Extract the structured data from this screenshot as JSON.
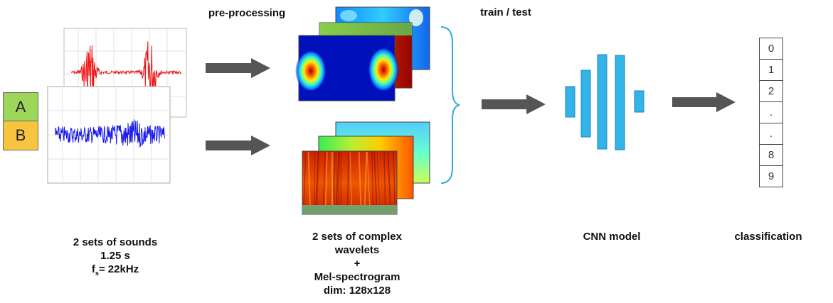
{
  "labels": {
    "sounds": [
      "2 sets of sounds",
      "1.25 s"
    ],
    "fs_f": "f",
    "fs_sub": "s",
    "fs_value": "= 22kHz",
    "preprocessing": "pre-processing",
    "train_test": "train / test",
    "features": [
      "2 sets of complex",
      "wavelets",
      "+",
      "Mel-spectrogram",
      "dim: 128x128"
    ],
    "cnn": "CNN model",
    "classification": "classification"
  },
  "classes": {
    "a": "A",
    "b": "B",
    "a_color": "#9ed65a",
    "b_color": "#f7c53f"
  },
  "outputs": [
    "0",
    "1",
    "2",
    ".",
    ".",
    "8",
    "9"
  ],
  "colors": {
    "signal_red": "#ee1111",
    "signal_blue": "#1a1aee",
    "arrow": "#555555",
    "cnn": "#33b3e6",
    "brace": "#33aadd"
  }
}
